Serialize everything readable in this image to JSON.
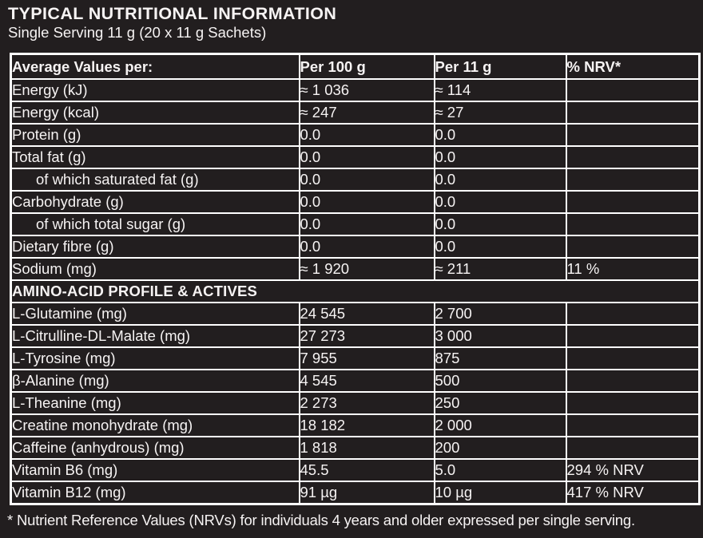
{
  "page": {
    "title": "TYPICAL NUTRITIONAL INFORMATION",
    "subtitle": "Single Serving 11 g (20 x 11 g Sachets)",
    "footnote": "* Nutrient Reference Values (NRVs) for individuals 4 years and older expressed per single serving."
  },
  "colors": {
    "background": "#221e1f",
    "text": "#f6f3f3",
    "border": "#ffffff"
  },
  "table": {
    "headers": [
      "Average Values per:",
      "Per 100 g",
      "Per 11 g",
      "% NRV*"
    ],
    "rows": [
      {
        "label": "Energy (kJ)",
        "per100": "≈ 1 036",
        "per11": "≈ 114",
        "nrv": "",
        "indent": false
      },
      {
        "label": "Energy (kcal)",
        "per100": "≈ 247",
        "per11": "≈ 27",
        "nrv": "",
        "indent": false
      },
      {
        "label": "Protein (g)",
        "per100": "0.0",
        "per11": "0.0",
        "nrv": "",
        "indent": false
      },
      {
        "label": "Total fat (g)",
        "per100": "0.0",
        "per11": "0.0",
        "nrv": "",
        "indent": false
      },
      {
        "label": "of which saturated fat (g)",
        "per100": "0.0",
        "per11": "0.0",
        "nrv": "",
        "indent": true
      },
      {
        "label": "Carbohydrate (g)",
        "per100": "0.0",
        "per11": "0.0",
        "nrv": "",
        "indent": false
      },
      {
        "label": "of which total sugar (g)",
        "per100": "0.0",
        "per11": "0.0",
        "nrv": "",
        "indent": true
      },
      {
        "label": "Dietary fibre (g)",
        "per100": "0.0",
        "per11": "0.0",
        "nrv": "",
        "indent": false
      },
      {
        "label": "Sodium (mg)",
        "per100": "≈ 1 920",
        "per11": "≈ 211",
        "nrv": "11 %",
        "indent": false
      },
      {
        "type": "section",
        "label": "AMINO-ACID PROFILE & ACTIVES"
      },
      {
        "label": "L-Glutamine (mg)",
        "per100": "24 545",
        "per11": "2 700",
        "nrv": "",
        "indent": false
      },
      {
        "label": "L-Citrulline-DL-Malate (mg)",
        "per100": "27 273",
        "per11": "3 000",
        "nrv": "",
        "indent": false
      },
      {
        "label": "L-Tyrosine (mg)",
        "per100": "7 955",
        "per11": "875",
        "nrv": "",
        "indent": false
      },
      {
        "label": "β-Alanine (mg)",
        "per100": "4 545",
        "per11": "500",
        "nrv": "",
        "indent": false
      },
      {
        "label": "L-Theanine (mg)",
        "per100": "2 273",
        "per11": "250",
        "nrv": "",
        "indent": false
      },
      {
        "label": "Creatine monohydrate (mg)",
        "per100": "18 182",
        "per11": "2 000",
        "nrv": "",
        "indent": false
      },
      {
        "label": "Caffeine (anhydrous) (mg)",
        "per100": "1 818",
        "per11": "200",
        "nrv": "",
        "indent": false
      },
      {
        "label": "Vitamin B6 (mg)",
        "per100": "45.5",
        "per11": "5.0",
        "nrv": "294 % NRV",
        "indent": false
      },
      {
        "label": "Vitamin B12 (mg)",
        "per100": "91 µg",
        "per11": "10 µg",
        "nrv": "417 % NRV",
        "indent": false
      }
    ]
  }
}
